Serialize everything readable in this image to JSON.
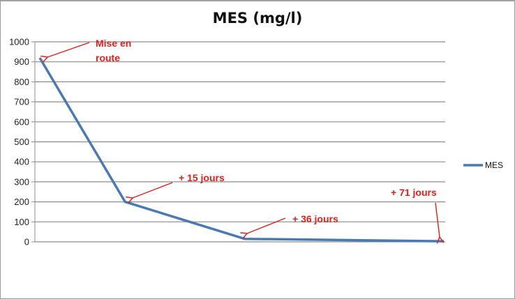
{
  "chart_data": {
    "type": "line",
    "title": "MES (mg/l)",
    "xlabel": "",
    "ylabel": "",
    "ylim": [
      0,
      1000
    ],
    "yticks": [
      0,
      100,
      200,
      300,
      400,
      500,
      600,
      700,
      800,
      900,
      1000
    ],
    "x_days": [
      0,
      15,
      36,
      71
    ],
    "categories": [
      "Mise en route",
      "+ 15 jours",
      "+ 36 jours",
      "+ 71 jours"
    ],
    "series": [
      {
        "name": "MES",
        "color": "#4a7ab4",
        "values": [
          920,
          200,
          15,
          3
        ]
      }
    ],
    "annotations": [
      {
        "text_lines": [
          "Mise  en",
          "route"
        ],
        "point_index": 0
      },
      {
        "text_lines": [
          "+ 15 jours"
        ],
        "point_index": 1
      },
      {
        "text_lines": [
          "+ 36 jours"
        ],
        "point_index": 2
      },
      {
        "text_lines": [
          "+ 71 jours"
        ],
        "point_index": 3
      }
    ],
    "annotation_color": "#e0201b",
    "grid": true,
    "gridline_color": "#8c8c8c",
    "legend": {
      "position": "right",
      "entries": [
        "MES"
      ]
    }
  },
  "labels": {
    "title": "MES (mg/l)",
    "legend_entry": "MES",
    "ann0_line1": "Mise  en",
    "ann0_line2": "route",
    "ann1": "+ 15 jours",
    "ann2": "+ 36 jours",
    "ann3": "+ 71 jours",
    "yticks": [
      "0",
      "100",
      "200",
      "300",
      "400",
      "500",
      "600",
      "700",
      "800",
      "900",
      "1000"
    ]
  }
}
